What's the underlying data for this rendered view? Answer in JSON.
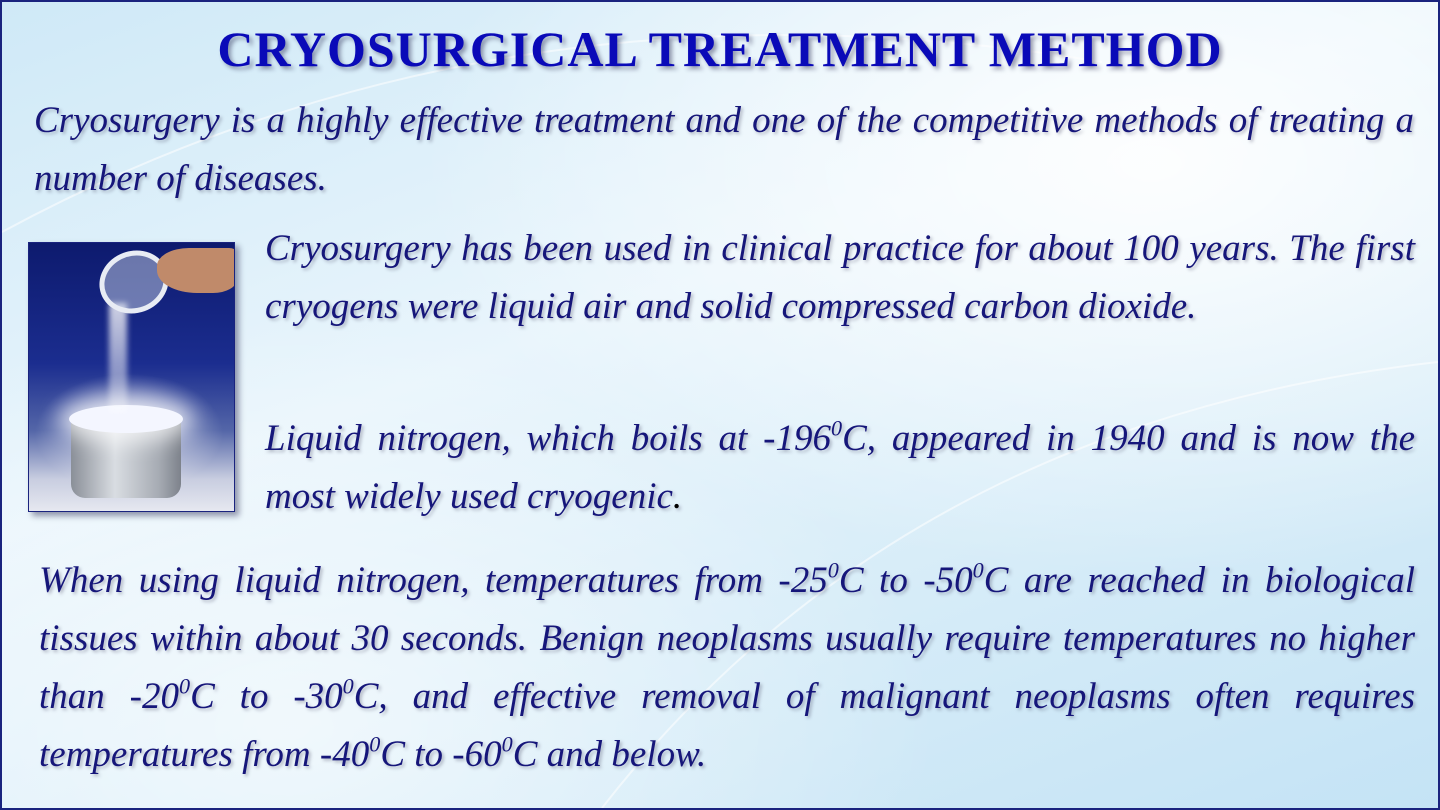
{
  "title": "CRYOSURGICAL TREATMENT METHOD",
  "paragraphs": {
    "intro": "Cryosurgery is a highly effective treatment and one of the competitive methods of treating a number of diseases.",
    "history": "Cryosurgery has been used in clinical practice for about 100 years. The first cryogens were liquid air and solid compressed carbon dioxide.",
    "nitrogen": {
      "a": "Liquid nitrogen, which boils at -196",
      "deg": "0",
      "b": "C, appeared in 1940 and is now the most widely used cryogenic",
      "end": "."
    },
    "temperatures": {
      "s1": "When using liquid nitrogen, temperatures from -25",
      "s2": "C to -50",
      "s3": "C are reached in biological tissues within about 30 seconds. Benign neoplasms usually require temperatures no higher than -20",
      "s4": "C to -30",
      "s5": "C, and effective removal of malignant neoplasms often requires temperatures from -40",
      "s6": "C to -60",
      "s7": "C and below.",
      "deg": "0"
    }
  },
  "image": {
    "subject": "liquid-nitrogen-pouring-photo"
  },
  "colors": {
    "title": "#0a0ab8",
    "text": "#16167a",
    "border": "#1a237e"
  }
}
